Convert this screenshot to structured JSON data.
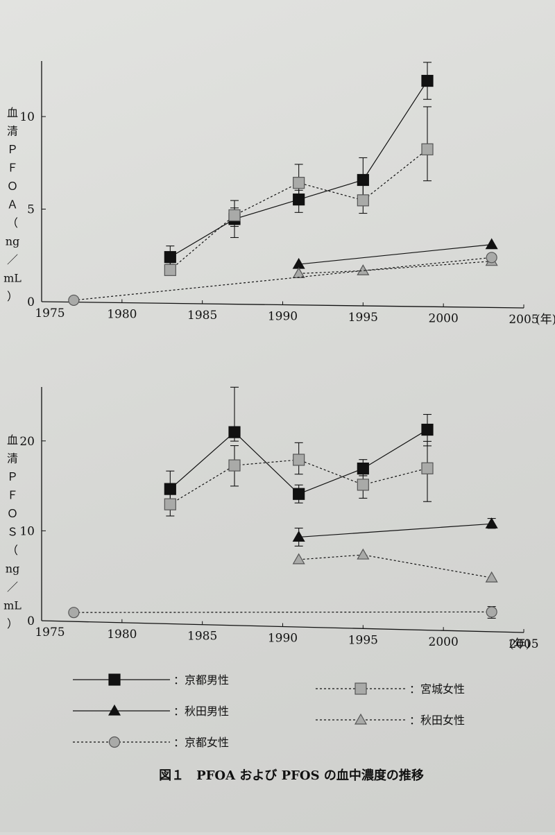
{
  "caption": "図１　PFOA および PFOS の血中濃度の推移",
  "colors": {
    "black": "#111111",
    "gray_fill": "#a9aaa8",
    "gray_stroke": "#555555"
  },
  "legend": [
    {
      "label": "：京都男性",
      "marker": "square",
      "fill": "black",
      "dash": false
    },
    {
      "label": "：秋田男性",
      "marker": "triangle",
      "fill": "black",
      "dash": false
    },
    {
      "label": "：京都女性",
      "marker": "circle",
      "fill": "gray",
      "dash": true
    },
    {
      "label": "：宮城女性",
      "marker": "square",
      "fill": "gray",
      "dash": true
    },
    {
      "label": "：秋田女性",
      "marker": "triangle",
      "fill": "gray",
      "dash": true
    }
  ],
  "chart_data": [
    {
      "type": "line",
      "ylabel": "血清ＰＦＯＡ（ng／mL）",
      "xlabel": "",
      "xunit": "(年)",
      "xlim": [
        1975,
        2005
      ],
      "ylim": [
        0,
        13
      ],
      "xticks": [
        1975,
        1980,
        1985,
        1990,
        1995,
        2000,
        2005
      ],
      "yticks": [
        0,
        5,
        10
      ],
      "series": [
        {
          "name": "京都男性",
          "marker": "square",
          "fill": "black",
          "dash": false,
          "points": [
            {
              "x": 1983,
              "y": 2.5,
              "lo": 2.1,
              "hi": 3.1
            },
            {
              "x": 1987,
              "y": 4.6,
              "lo": 3.6,
              "hi": 5.6
            },
            {
              "x": 1991,
              "y": 5.7,
              "lo": 5.0,
              "hi": 6.2
            },
            {
              "x": 1995,
              "y": 6.8,
              "lo": 5.6,
              "hi": 8.0
            },
            {
              "x": 1999,
              "y": 12.2,
              "lo": 11.2,
              "hi": 13.2
            }
          ]
        },
        {
          "name": "宮城女性",
          "marker": "square",
          "fill": "gray",
          "dash": true,
          "points": [
            {
              "x": 1983,
              "y": 1.8,
              "lo": 1.6,
              "hi": 2.2
            },
            {
              "x": 1987,
              "y": 4.8,
              "lo": 4.2,
              "hi": 5.2
            },
            {
              "x": 1991,
              "y": 6.6,
              "lo": 5.8,
              "hi": 7.6
            },
            {
              "x": 1995,
              "y": 5.7,
              "lo": 5.0,
              "hi": 6.6
            },
            {
              "x": 1999,
              "y": 8.5,
              "lo": 6.8,
              "hi": 10.8
            }
          ]
        },
        {
          "name": "秋田男性",
          "marker": "triangle",
          "fill": "black",
          "dash": false,
          "points": [
            {
              "x": 1991,
              "y": 2.2
            },
            {
              "x": 2003,
              "y": 3.4
            }
          ]
        },
        {
          "name": "秋田女性",
          "marker": "triangle",
          "fill": "gray",
          "dash": true,
          "points": [
            {
              "x": 1991,
              "y": 1.7
            },
            {
              "x": 1995,
              "y": 1.9
            },
            {
              "x": 2003,
              "y": 2.5
            }
          ]
        },
        {
          "name": "京都女性",
          "marker": "circle",
          "fill": "gray",
          "dash": true,
          "points": [
            {
              "x": 1977,
              "y": 0.1
            },
            {
              "x": 2003,
              "y": 2.7
            }
          ]
        }
      ]
    },
    {
      "type": "line",
      "ylabel": "血清ＰＦＯＳ（ng／mL）",
      "xlabel": "",
      "xunit": "(年)",
      "xlim": [
        1975,
        2005
      ],
      "ylim": [
        0,
        26
      ],
      "xticks": [
        1975,
        1980,
        1985,
        1990,
        1995,
        2000,
        2005
      ],
      "yticks": [
        0,
        10,
        20
      ],
      "series": [
        {
          "name": "京都男性",
          "marker": "square",
          "fill": "black",
          "dash": false,
          "points": [
            {
              "x": 1983,
              "y": 15.0,
              "lo": 13.5,
              "hi": 17.0
            },
            {
              "x": 1987,
              "y": 21.5,
              "lo": 20.5,
              "hi": 26.5
            },
            {
              "x": 1991,
              "y": 14.8,
              "lo": 13.8,
              "hi": 15.8
            },
            {
              "x": 1995,
              "y": 17.8,
              "lo": 17.0,
              "hi": 18.8
            },
            {
              "x": 1999,
              "y": 22.3,
              "lo": 20.5,
              "hi": 24.0
            }
          ]
        },
        {
          "name": "宮城女性",
          "marker": "square",
          "fill": "gray",
          "dash": true,
          "points": [
            {
              "x": 1983,
              "y": 13.3,
              "lo": 12.0,
              "hi": 14.5
            },
            {
              "x": 1987,
              "y": 17.8,
              "lo": 15.5,
              "hi": 20.0
            },
            {
              "x": 1991,
              "y": 18.6,
              "lo": 17.0,
              "hi": 20.5
            },
            {
              "x": 1995,
              "y": 16.0,
              "lo": 14.5,
              "hi": 17.0
            },
            {
              "x": 1999,
              "y": 18.0,
              "lo": 14.3,
              "hi": 21.0
            }
          ]
        },
        {
          "name": "秋田男性",
          "marker": "triangle",
          "fill": "black",
          "dash": false,
          "points": [
            {
              "x": 1991,
              "y": 10.0,
              "lo": 9.0,
              "hi": 11.0
            },
            {
              "x": 2003,
              "y": 12.0,
              "lo": 11.5,
              "hi": 12.6
            }
          ]
        },
        {
          "name": "秋田女性",
          "marker": "triangle",
          "fill": "gray",
          "dash": true,
          "points": [
            {
              "x": 1991,
              "y": 7.5
            },
            {
              "x": 1995,
              "y": 8.2
            },
            {
              "x": 2003,
              "y": 6.0
            }
          ]
        },
        {
          "name": "京都女性",
          "marker": "circle",
          "fill": "gray",
          "dash": true,
          "points": [
            {
              "x": 1977,
              "y": 1.0
            },
            {
              "x": 2003,
              "y": 2.2,
              "lo": 1.5,
              "hi": 2.8
            }
          ]
        }
      ]
    }
  ]
}
